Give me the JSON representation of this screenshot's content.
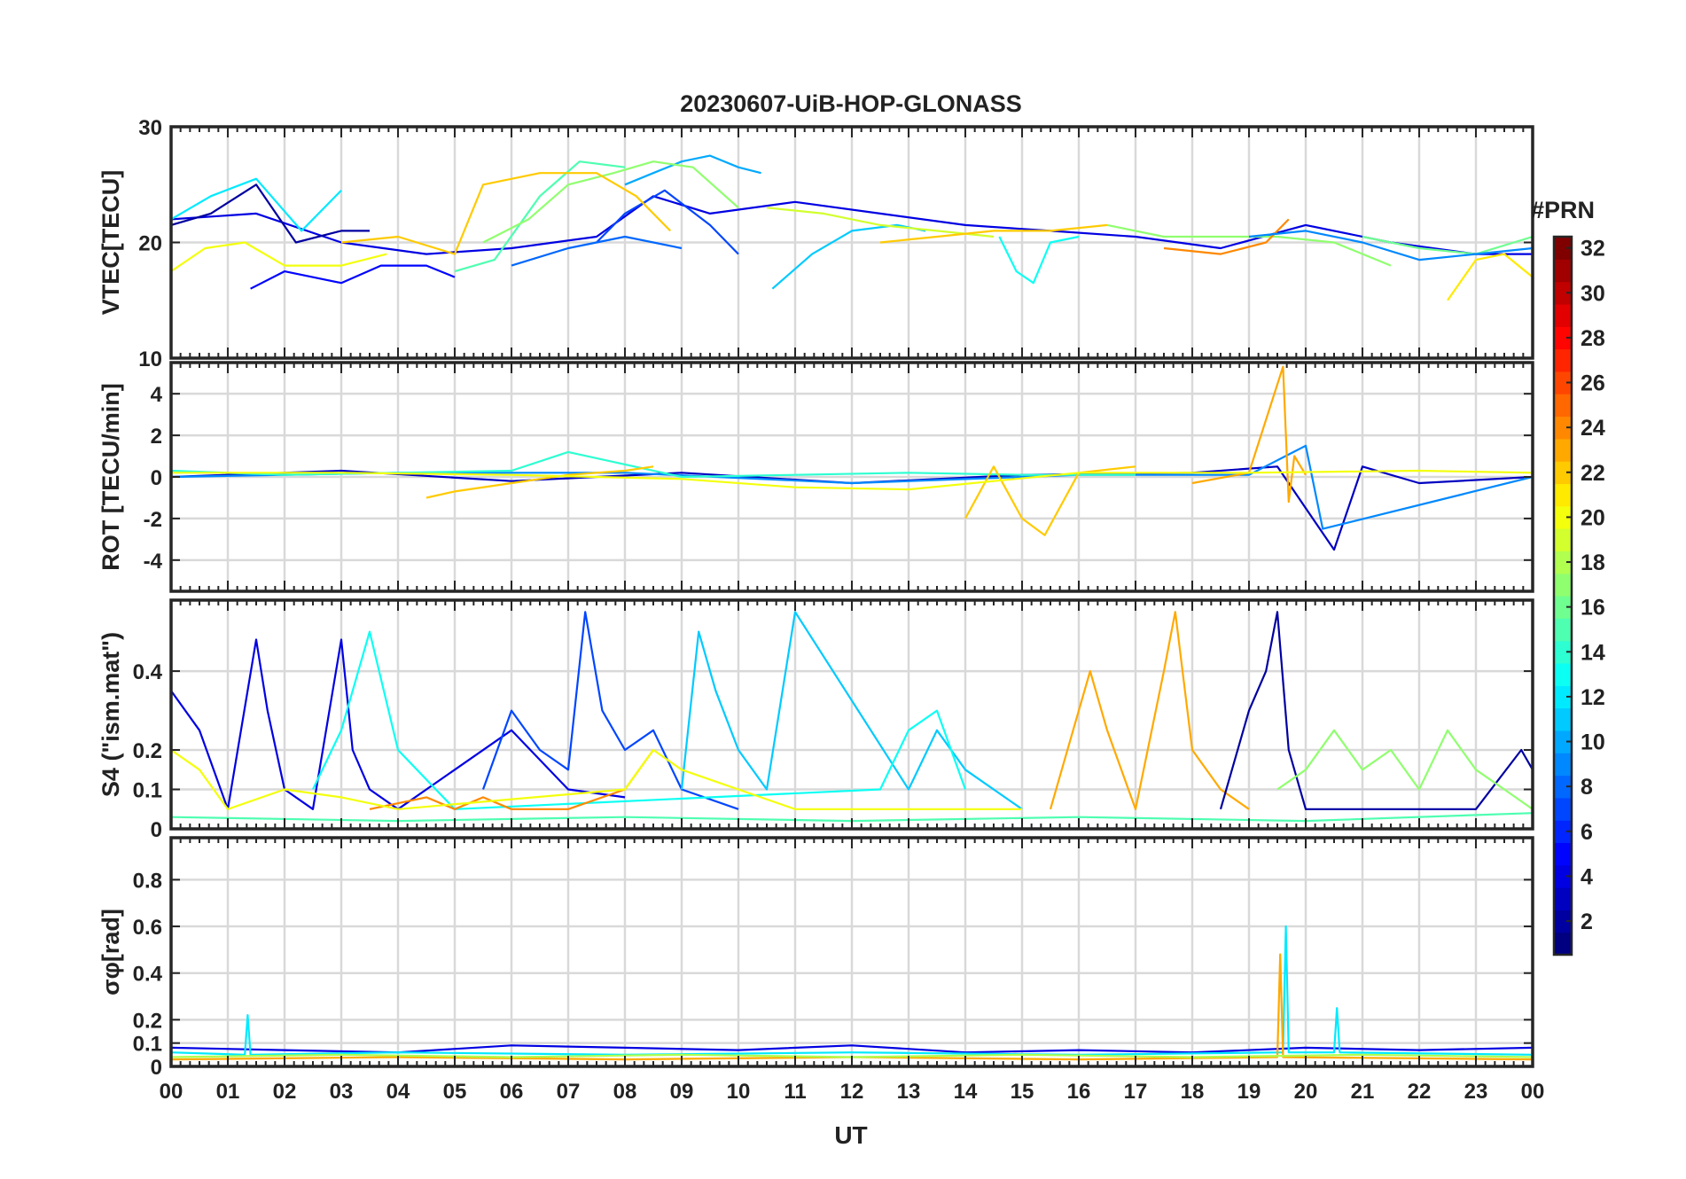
{
  "chart_data": {
    "type": "line",
    "title": "20230607-UiB-HOP-GLONASS",
    "xlabel": "UT",
    "x_tick_labels": [
      "00",
      "01",
      "02",
      "03",
      "04",
      "05",
      "06",
      "07",
      "08",
      "09",
      "10",
      "11",
      "12",
      "13",
      "14",
      "15",
      "16",
      "17",
      "18",
      "19",
      "20",
      "21",
      "22",
      "23",
      "00"
    ],
    "xlim_hours": [
      0,
      24
    ],
    "grid": true,
    "colorbar": {
      "label": "#PRN",
      "range": [
        1,
        32
      ],
      "tick_values": [
        2,
        4,
        6,
        8,
        10,
        12,
        14,
        16,
        18,
        20,
        22,
        24,
        26,
        28,
        30,
        32
      ],
      "tick_labels": [
        "2",
        "4",
        "6",
        "8",
        "10",
        "12",
        "14",
        "16",
        "18",
        "20",
        "22",
        "24",
        "26",
        "28",
        "30",
        "32"
      ],
      "colormap": "jet",
      "placement": "right"
    },
    "panels": [
      {
        "id": "vtec",
        "ylabel": "VTEC[TECU]",
        "ylim": [
          10,
          30
        ],
        "y_ticks": [
          10,
          20,
          30
        ],
        "y_tick_labels": [
          "10",
          "20",
          "30"
        ],
        "series": [
          {
            "prn": 4,
            "x": [
              0.0,
              1.5,
              3.0,
              4.5,
              6.0,
              7.5,
              8.5,
              9.5,
              11.0,
              12.5,
              14.0,
              15.5,
              17.0,
              18.5,
              20.0,
              21.5,
              23.0,
              24.0
            ],
            "y": [
              22,
              22.5,
              20,
              19,
              19.5,
              20.5,
              24,
              22.5,
              23.5,
              22.5,
              21.5,
              21,
              20.5,
              19.5,
              21.5,
              20,
              19,
              19
            ]
          },
          {
            "prn": 2,
            "x": [
              0.0,
              0.7,
              1.5,
              2.2,
              3.0,
              3.5
            ],
            "y": [
              21.5,
              22.5,
              25,
              20,
              21,
              21
            ]
          },
          {
            "prn": 5,
            "x": [
              1.4,
              2.0,
              3.0,
              3.7,
              4.5,
              5.0
            ],
            "y": [
              16,
              17.5,
              16.5,
              18,
              18,
              17
            ]
          },
          {
            "prn": 7,
            "x": [
              7.5,
              8.0,
              8.7,
              9.5,
              10.0
            ],
            "y": [
              20,
              22.5,
              24.5,
              21.5,
              19
            ]
          },
          {
            "prn": 8,
            "x": [
              6.0,
              7.0,
              8.0,
              9.0
            ],
            "y": [
              18,
              19.5,
              20.5,
              19.5
            ]
          },
          {
            "prn": 10,
            "x": [
              8.0,
              8.5,
              9.0,
              9.5,
              10.0,
              10.4
            ],
            "y": [
              25,
              26,
              27,
              27.5,
              26.5,
              26
            ]
          },
          {
            "prn": 12,
            "x": [
              0.0,
              0.7,
              1.5,
              2.3,
              3.0
            ],
            "y": [
              22,
              24,
              25.5,
              21,
              24.5
            ]
          },
          {
            "prn": 11,
            "x": [
              10.6,
              11.3,
              12.0,
              12.8,
              13.3
            ],
            "y": [
              16,
              19,
              21,
              21.5,
              21
            ]
          },
          {
            "prn": 13,
            "x": [
              14.6,
              14.9,
              15.2,
              15.5,
              16.0
            ],
            "y": [
              20.5,
              17.5,
              16.5,
              20,
              20.5
            ]
          },
          {
            "prn": 15,
            "x": [
              5.0,
              5.7,
              6.5,
              7.2,
              8.0
            ],
            "y": [
              17.5,
              18.5,
              24,
              27,
              26.5
            ]
          },
          {
            "prn": 17,
            "x": [
              5.5,
              6.3,
              7.0,
              7.8,
              8.5,
              9.2,
              10.0
            ],
            "y": [
              20,
              22,
              25,
              26,
              27,
              26.5,
              23
            ]
          },
          {
            "prn": 17,
            "x": [
              16.5,
              17.5,
              18.5,
              19.5,
              20.5,
              21.5
            ],
            "y": [
              21.5,
              20.5,
              20.5,
              20.5,
              20,
              18
            ]
          },
          {
            "prn": 19,
            "x": [
              10.5,
              11.5,
              12.5,
              13.5,
              14.5
            ],
            "y": [
              23,
              22.5,
              21.5,
              21,
              20.5
            ]
          },
          {
            "prn": 20,
            "x": [
              0.0,
              0.6,
              1.3,
              2.0,
              3.0,
              3.8
            ],
            "y": [
              17.5,
              19.5,
              20,
              18,
              18,
              19
            ]
          },
          {
            "prn": 21,
            "x": [
              22.5,
              23.0,
              23.5,
              24.0
            ],
            "y": [
              15,
              18.5,
              19,
              17
            ]
          },
          {
            "prn": 22,
            "x": [
              3.0,
              4.0,
              5.0,
              5.5,
              6.5,
              7.5,
              8.2,
              8.8
            ],
            "y": [
              20,
              20.5,
              19,
              25,
              26,
              26,
              24,
              21
            ]
          },
          {
            "prn": 22,
            "x": [
              12.5,
              13.5,
              14.5,
              15.5,
              16.5
            ],
            "y": [
              20,
              20.5,
              21,
              21,
              21.5
            ]
          },
          {
            "prn": 24,
            "x": [
              17.5,
              18.5,
              19.3,
              19.7
            ],
            "y": [
              19.5,
              19,
              20,
              22
            ]
          },
          {
            "prn": 16,
            "x": [
              21.0,
              22.0,
              23.0,
              24.0
            ],
            "y": [
              20.5,
              19.5,
              19,
              20.5
            ]
          },
          {
            "prn": 9,
            "x": [
              19.0,
              20.0,
              21.0,
              22.0,
              23.0,
              24.0
            ],
            "y": [
              20.5,
              21,
              20,
              18.5,
              19,
              19.5
            ]
          }
        ]
      },
      {
        "id": "rot",
        "ylabel": "ROT [TECU/min]",
        "ylim": [
          -5.5,
          5.5
        ],
        "y_ticks": [
          -4,
          -2,
          0,
          2,
          4
        ],
        "y_tick_labels": [
          "-4",
          "-2",
          "0",
          "2",
          "4"
        ],
        "series": [
          {
            "prn": 3,
            "x": [
              0.0,
              3.0,
              6.0,
              9.0,
              12.0,
              15.0,
              18.0,
              19.5,
              20.0,
              20.5,
              21.0,
              22.0,
              24.0
            ],
            "y": [
              0,
              0.3,
              -0.2,
              0.2,
              -0.3,
              0.1,
              0.2,
              0.5,
              -1.5,
              -3.5,
              0.5,
              -0.3,
              0
            ]
          },
          {
            "prn": 9,
            "x": [
              0.0,
              4.0,
              8.0,
              12.0,
              16.0,
              19.0,
              20.0,
              20.3,
              24.0
            ],
            "y": [
              0,
              0.2,
              0.2,
              -0.3,
              0.1,
              0.1,
              1.5,
              -2.5,
              0
            ]
          },
          {
            "prn": 14,
            "x": [
              0.0,
              2.0,
              4.0,
              6.0,
              7.0,
              9.0,
              11.0,
              13.0,
              15.0,
              17.0
            ],
            "y": [
              0.3,
              0.1,
              0.2,
              0.3,
              1.2,
              0,
              0.1,
              0.2,
              0.1,
              0.1
            ]
          },
          {
            "prn": 22,
            "x": [
              4.5,
              5.0,
              6.0,
              7.0,
              8.0,
              8.5
            ],
            "y": [
              -1,
              -0.7,
              -0.3,
              0.1,
              0.3,
              0.5
            ]
          },
          {
            "prn": 22,
            "x": [
              14.0,
              14.5,
              15.0,
              15.4,
              16.0,
              17.0
            ],
            "y": [
              -2,
              0.5,
              -2,
              -2.8,
              0.2,
              0.5
            ]
          },
          {
            "prn": 23,
            "x": [
              18.0,
              19.0,
              19.6,
              19.7,
              19.8,
              20.0
            ],
            "y": [
              -0.3,
              0.2,
              5.3,
              -1.2,
              1,
              0.1
            ]
          },
          {
            "prn": 20,
            "x": [
              0.0,
              3.0,
              6.0,
              9.0,
              11.0,
              13.0,
              16.0,
              19.0,
              22.0,
              24.0
            ],
            "y": [
              0.2,
              0.2,
              0.1,
              -0.1,
              -0.5,
              -0.6,
              0.2,
              0.2,
              0.3,
              0.2
            ]
          }
        ]
      },
      {
        "id": "s4",
        "ylabel": "S4 (\"ism.mat\")",
        "ylim": [
          0,
          0.58
        ],
        "y_ticks": [
          0,
          0.1,
          0.2,
          0.4
        ],
        "y_tick_labels": [
          "0",
          "0.1",
          "0.2",
          "0.4"
        ],
        "series": [
          {
            "prn": 4,
            "x": [
              0.0,
              0.5,
              1.0,
              1.5,
              1.7,
              2.0,
              2.5,
              3.0,
              3.2,
              3.5,
              4.0,
              5.0,
              6.0,
              7.0,
              8.0
            ],
            "y": [
              0.35,
              0.25,
              0.05,
              0.48,
              0.3,
              0.1,
              0.05,
              0.48,
              0.2,
              0.1,
              0.05,
              0.15,
              0.25,
              0.1,
              0.08
            ]
          },
          {
            "prn": 7,
            "x": [
              5.5,
              6.0,
              6.5,
              7.0,
              7.3,
              7.6,
              8.0,
              8.5,
              9.0,
              10.0
            ],
            "y": [
              0.1,
              0.3,
              0.2,
              0.15,
              0.55,
              0.3,
              0.2,
              0.25,
              0.1,
              0.05
            ]
          },
          {
            "prn": 11,
            "x": [
              9.0,
              9.3,
              9.6,
              10.0,
              10.5,
              11.0,
              13.0,
              13.5,
              14.0,
              15.0
            ],
            "y": [
              0.1,
              0.5,
              0.35,
              0.2,
              0.1,
              0.55,
              0.1,
              0.25,
              0.15,
              0.05
            ]
          },
          {
            "prn": 13,
            "x": [
              2.5,
              3.0,
              3.5,
              4.0,
              5.0,
              12.5,
              13.0,
              13.5,
              14.0
            ],
            "y": [
              0.1,
              0.25,
              0.5,
              0.2,
              0.05,
              0.1,
              0.25,
              0.3,
              0.1
            ]
          },
          {
            "prn": 23,
            "x": [
              15.5,
              15.8,
              16.2,
              16.5,
              17.0,
              17.5,
              17.7,
              18.0,
              18.5,
              19.0
            ],
            "y": [
              0.05,
              0.2,
              0.4,
              0.25,
              0.05,
              0.4,
              0.55,
              0.2,
              0.1,
              0.05
            ]
          },
          {
            "prn": 24,
            "x": [
              3.5,
              4.5,
              5.0,
              5.5,
              6.0,
              7.0,
              8.0,
              8.5
            ],
            "y": [
              0.05,
              0.08,
              0.05,
              0.08,
              0.05,
              0.05,
              0.1,
              0.2
            ]
          },
          {
            "prn": 2,
            "x": [
              18.5,
              19.0,
              19.3,
              19.5,
              19.7,
              20.0,
              21.0,
              23.0,
              23.8,
              24.0
            ],
            "y": [
              0.05,
              0.3,
              0.4,
              0.55,
              0.2,
              0.05,
              0.05,
              0.05,
              0.2,
              0.15
            ]
          },
          {
            "prn": 17,
            "x": [
              19.5,
              20.0,
              20.5,
              21.0,
              21.5,
              22.0,
              22.5,
              23.0,
              23.5,
              24.0
            ],
            "y": [
              0.1,
              0.15,
              0.25,
              0.15,
              0.2,
              0.1,
              0.25,
              0.15,
              0.1,
              0.05
            ]
          },
          {
            "prn": 20,
            "x": [
              0.0,
              0.5,
              1.0,
              2.0,
              3.0,
              4.0,
              8.0,
              8.5,
              9.0,
              11.0,
              12.0,
              14.5,
              15.0
            ],
            "y": [
              0.2,
              0.15,
              0.05,
              0.1,
              0.08,
              0.05,
              0.1,
              0.2,
              0.15,
              0.05,
              0.05,
              0.05,
              0.05
            ]
          },
          {
            "prn": 15,
            "x": [
              0.0,
              4.0,
              8.0,
              12.0,
              16.0,
              20.0,
              24.0
            ],
            "y": [
              0.03,
              0.02,
              0.03,
              0.02,
              0.03,
              0.02,
              0.04
            ]
          }
        ]
      },
      {
        "id": "sigma_phi",
        "ylabel": "σφ[rad]",
        "ylim": [
          0,
          0.98
        ],
        "y_ticks": [
          0,
          0.1,
          0.2,
          0.4,
          0.6,
          0.8
        ],
        "y_tick_labels": [
          "0",
          "0.1",
          "0.2",
          "0.4",
          "0.6",
          "0.8"
        ],
        "series": [
          {
            "prn": 4,
            "x": [
              0.0,
              2.0,
              4.0,
              6.0,
              8.0,
              10.0,
              12.0,
              14.0,
              16.0,
              18.0,
              20.0,
              22.0,
              24.0
            ],
            "y": [
              0.08,
              0.07,
              0.06,
              0.09,
              0.08,
              0.07,
              0.09,
              0.06,
              0.07,
              0.06,
              0.08,
              0.07,
              0.08
            ]
          },
          {
            "prn": 12,
            "x": [
              0.0,
              1.3,
              1.35,
              1.4,
              4.0,
              8.0,
              12.0,
              16.0,
              19.6,
              19.65,
              19.7,
              20.5,
              20.55,
              20.6,
              24.0
            ],
            "y": [
              0.06,
              0.05,
              0.22,
              0.05,
              0.06,
              0.05,
              0.06,
              0.05,
              0.06,
              0.6,
              0.06,
              0.06,
              0.25,
              0.06,
              0.05
            ]
          },
          {
            "prn": 23,
            "x": [
              0.0,
              4.0,
              8.0,
              12.0,
              16.0,
              19.5,
              19.55,
              19.6,
              24.0
            ],
            "y": [
              0.03,
              0.04,
              0.03,
              0.04,
              0.03,
              0.04,
              0.48,
              0.04,
              0.03
            ]
          },
          {
            "prn": 18,
            "x": [
              0.0,
              3.0,
              6.0,
              9.0,
              12.0,
              15.0,
              18.0,
              21.0,
              24.0
            ],
            "y": [
              0.04,
              0.05,
              0.04,
              0.05,
              0.04,
              0.05,
              0.04,
              0.05,
              0.04
            ]
          }
        ]
      }
    ]
  }
}
